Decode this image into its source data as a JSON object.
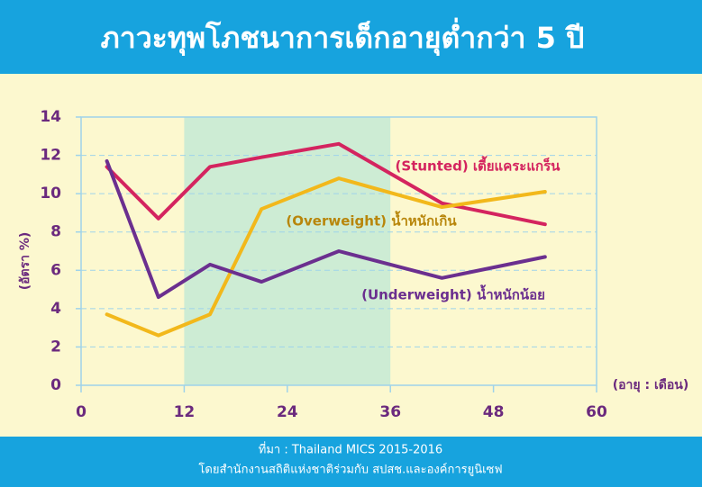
{
  "chart_data": {
    "type": "line",
    "title": "ภาวะทุพโภชนาการเด็กอายุต่ำกว่า 5 ปี",
    "x_label": "(อายุ : เดือน)",
    "y_label": "(อัตรา %)",
    "x": [
      3,
      9,
      15,
      21,
      30,
      42,
      54
    ],
    "series": [
      {
        "name": "(Stunted) เตี้ยแคระแกร็น",
        "color": "#d4245f",
        "values": [
          11.4,
          8.7,
          11.4,
          11.9,
          12.6,
          9.5,
          8.4
        ]
      },
      {
        "name": "(Overweight) น้ำหนักเกิน",
        "color": "#f2b81b",
        "values": [
          3.7,
          2.6,
          3.7,
          9.2,
          10.8,
          9.3,
          10.1
        ]
      },
      {
        "name": "(Underweight) น้ำหนักน้อย",
        "color": "#6b2f8f",
        "values": [
          11.7,
          4.6,
          6.3,
          5.4,
          7.0,
          5.6,
          6.7
        ]
      }
    ],
    "xlim": [
      0,
      60
    ],
    "xticks": [
      0,
      12,
      24,
      36,
      48,
      60
    ],
    "ylim": [
      0,
      14
    ],
    "yticks": [
      0,
      2,
      4,
      6,
      8,
      10,
      12,
      14
    ],
    "shaded_range": [
      12,
      36
    ],
    "grid": true,
    "source": "ที่มา : Thailand MICS 2015-2016",
    "source_note": "โดยสำนักงานสถิติแห่งชาติร่วมกับ สปสช.และองค์การยูนิเซฟ"
  }
}
